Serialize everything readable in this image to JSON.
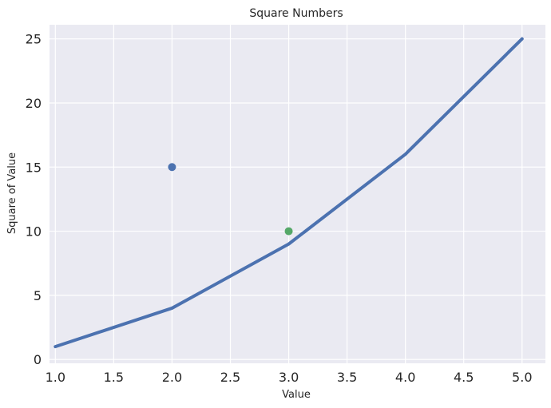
{
  "chart_data": {
    "type": "line",
    "title": "Square Numbers",
    "xlabel": "Value",
    "ylabel": "Square of Value",
    "xlim": [
      0.95,
      5.2
    ],
    "ylim": [
      -0.3,
      26.1
    ],
    "xticks": [
      1.0,
      1.5,
      2.0,
      2.5,
      3.0,
      3.5,
      4.0,
      4.5,
      5.0
    ],
    "xtick_labels": [
      "1.0",
      "1.5",
      "2.0",
      "2.5",
      "3.0",
      "3.5",
      "4.0",
      "4.5",
      "5.0"
    ],
    "yticks": [
      0,
      5,
      10,
      15,
      20,
      25
    ],
    "ytick_labels": [
      "0",
      "5",
      "10",
      "15",
      "20",
      "25"
    ],
    "grid": true,
    "series": [
      {
        "type": "line",
        "x": [
          1,
          2,
          3,
          4,
          5
        ],
        "y": [
          1,
          4,
          9,
          16,
          25
        ],
        "color": "#4c72b0"
      },
      {
        "type": "scatter",
        "x": [
          2
        ],
        "y": [
          15
        ],
        "color": "#4c72b0"
      },
      {
        "type": "scatter",
        "x": [
          3
        ],
        "y": [
          10
        ],
        "color": "#55a868"
      }
    ],
    "colors": {
      "plot_background": "#eaeaf2",
      "grid": "#ffffff"
    }
  }
}
